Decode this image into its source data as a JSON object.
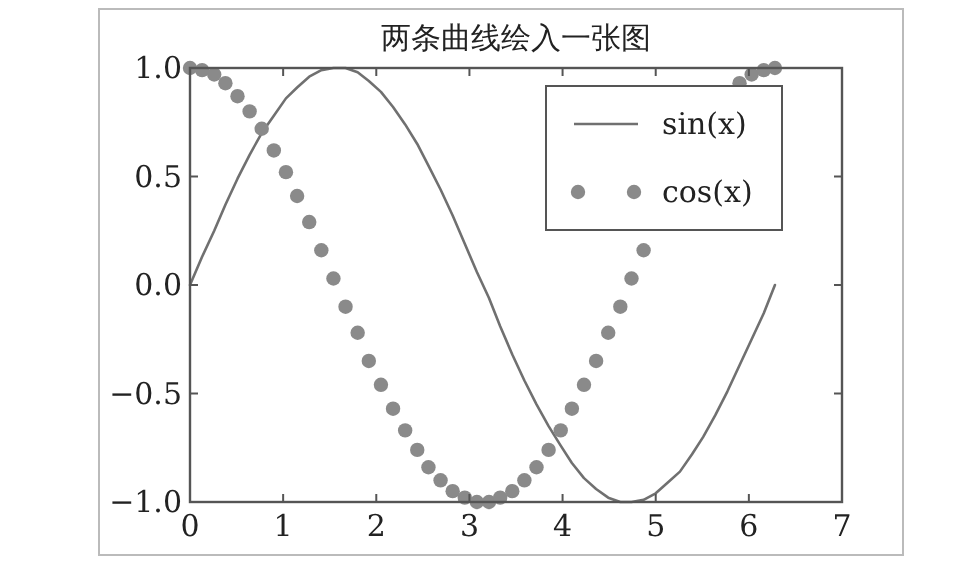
{
  "chart_data": {
    "type": "line",
    "title": "两条曲线绘入一张图",
    "x": [
      0.0,
      0.13,
      0.26,
      0.38,
      0.51,
      0.64,
      0.77,
      0.9,
      1.03,
      1.15,
      1.28,
      1.41,
      1.54,
      1.67,
      1.8,
      1.92,
      2.05,
      2.18,
      2.31,
      2.44,
      2.56,
      2.69,
      2.82,
      2.95,
      3.08,
      3.21,
      3.33,
      3.46,
      3.59,
      3.72,
      3.85,
      3.98,
      4.1,
      4.23,
      4.36,
      4.49,
      4.62,
      4.74,
      4.87,
      5.0,
      5.13,
      5.26,
      5.39,
      5.51,
      5.64,
      5.77,
      5.9,
      6.03,
      6.16,
      6.28
    ],
    "series": [
      {
        "name": "sin(x)",
        "color": "#707070",
        "line_style": "solid",
        "values": [
          0.0,
          0.13,
          0.25,
          0.37,
          0.49,
          0.6,
          0.7,
          0.78,
          0.86,
          0.91,
          0.96,
          0.99,
          1.0,
          1.0,
          0.98,
          0.94,
          0.89,
          0.82,
          0.74,
          0.65,
          0.55,
          0.44,
          0.32,
          0.19,
          0.06,
          -0.06,
          -0.19,
          -0.32,
          -0.44,
          -0.55,
          -0.65,
          -0.74,
          -0.82,
          -0.89,
          -0.94,
          -0.98,
          -1.0,
          -1.0,
          -0.99,
          -0.96,
          -0.91,
          -0.86,
          -0.78,
          -0.7,
          -0.6,
          -0.49,
          -0.37,
          -0.25,
          -0.13,
          0.0
        ]
      },
      {
        "name": "cos(x)",
        "type": "scatter",
        "color": "#8a8a8a",
        "marker": "circle",
        "values": [
          1.0,
          0.99,
          0.97,
          0.93,
          0.87,
          0.8,
          0.72,
          0.62,
          0.52,
          0.41,
          0.29,
          0.16,
          0.03,
          -0.1,
          -0.22,
          -0.35,
          -0.46,
          -0.57,
          -0.67,
          -0.76,
          -0.84,
          -0.9,
          -0.95,
          -0.98,
          -1.0,
          -1.0,
          -0.98,
          -0.95,
          -0.9,
          -0.84,
          -0.76,
          -0.67,
          -0.57,
          -0.46,
          -0.35,
          -0.22,
          -0.1,
          0.03,
          0.16,
          null,
          null,
          null,
          null,
          null,
          null,
          null,
          0.93,
          0.97,
          0.99,
          1.0
        ]
      }
    ],
    "xlim": [
      0,
      7
    ],
    "ylim": [
      -1,
      1
    ],
    "xticks": [
      0,
      1,
      2,
      3,
      4,
      5,
      6,
      7
    ],
    "yticks": [
      {
        "value": -1,
        "label": "−1.0"
      },
      {
        "value": -0.5,
        "label": "−0.5"
      },
      {
        "value": 0,
        "label": "0.0"
      },
      {
        "value": 0.5,
        "label": "0.5"
      },
      {
        "value": 1,
        "label": "1.0"
      }
    ],
    "legend": "top right"
  }
}
